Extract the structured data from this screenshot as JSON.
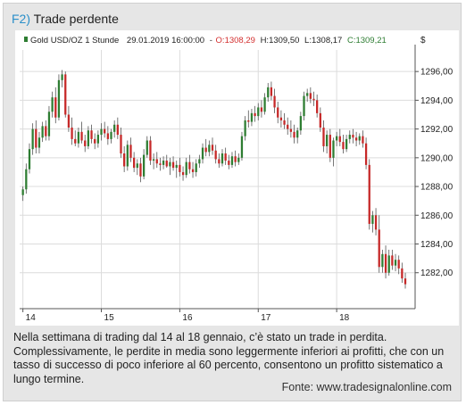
{
  "figure": {
    "number": "F2)",
    "title": "Trade perdente",
    "caption": "Nella settimana di trading dal 14 al 18 gennaio, c’è stato un trade in perdita. Complessivamente, le perdite in media sono leggermente inferiori ai profitti, che con un tasso di successo di poco inferiore al 60 percento, consentono un profitto sistematico a lungo termine.",
    "source": "Fonte: www.tradesignalonline.com"
  },
  "colors": {
    "up": "#2e7d32",
    "down": "#c62828",
    "wick": "#555555",
    "panel_bg": "#e6e6e6",
    "accent": "#2a8fc9"
  },
  "chart_data": {
    "type": "candlestick",
    "header": {
      "instrument": "Gold USD/OZ 1 Stunde",
      "datetime": "29.01.2019 16:00:00",
      "open": "O:1308,29",
      "high": "H:1309,50",
      "low": "L:1308,17",
      "close": "C:1309,21"
    },
    "y_axis_title": "$",
    "y_ticks": [
      "1282,00",
      "1284,00",
      "1286,00",
      "1288,00",
      "1290,00",
      "1292,00",
      "1294,00",
      "1296,00"
    ],
    "y_tick_values": [
      1282,
      1284,
      1286,
      1288,
      1290,
      1292,
      1294,
      1296
    ],
    "ylim": [
      1279.5,
      1297.5
    ],
    "x_ticks": [
      "14",
      "15",
      "16",
      "17",
      "18"
    ],
    "x_tick_positions": [
      0,
      24,
      48,
      72,
      96
    ],
    "xlim": [
      -1,
      120
    ],
    "grid": true,
    "candles": [
      {
        "o": 1287.4,
        "h": 1288.0,
        "l": 1287.0,
        "c": 1287.8
      },
      {
        "o": 1287.8,
        "h": 1289.6,
        "l": 1287.5,
        "c": 1289.2
      },
      {
        "o": 1289.2,
        "h": 1291.0,
        "l": 1288.9,
        "c": 1290.6
      },
      {
        "o": 1290.6,
        "h": 1292.4,
        "l": 1290.2,
        "c": 1292.0
      },
      {
        "o": 1292.0,
        "h": 1292.6,
        "l": 1290.3,
        "c": 1290.7
      },
      {
        "o": 1290.7,
        "h": 1291.8,
        "l": 1290.3,
        "c": 1291.4
      },
      {
        "o": 1291.4,
        "h": 1292.5,
        "l": 1291.1,
        "c": 1292.2
      },
      {
        "o": 1292.2,
        "h": 1292.6,
        "l": 1291.2,
        "c": 1291.5
      },
      {
        "o": 1291.5,
        "h": 1293.6,
        "l": 1291.2,
        "c": 1293.2
      },
      {
        "o": 1293.2,
        "h": 1294.6,
        "l": 1292.8,
        "c": 1294.2
      },
      {
        "o": 1294.2,
        "h": 1294.9,
        "l": 1292.4,
        "c": 1292.8
      },
      {
        "o": 1292.8,
        "h": 1295.8,
        "l": 1292.6,
        "c": 1295.4
      },
      {
        "o": 1295.4,
        "h": 1296.1,
        "l": 1294.9,
        "c": 1295.8
      },
      {
        "o": 1295.8,
        "h": 1296.0,
        "l": 1292.8,
        "c": 1293.0
      },
      {
        "o": 1293.0,
        "h": 1293.6,
        "l": 1291.8,
        "c": 1292.1
      },
      {
        "o": 1292.1,
        "h": 1292.8,
        "l": 1290.9,
        "c": 1291.3
      },
      {
        "o": 1291.3,
        "h": 1291.9,
        "l": 1290.8,
        "c": 1291.0
      },
      {
        "o": 1291.0,
        "h": 1292.1,
        "l": 1290.7,
        "c": 1291.8
      },
      {
        "o": 1291.8,
        "h": 1292.5,
        "l": 1291.0,
        "c": 1291.2
      },
      {
        "o": 1291.2,
        "h": 1291.6,
        "l": 1290.4,
        "c": 1290.8
      },
      {
        "o": 1290.8,
        "h": 1292.2,
        "l": 1290.6,
        "c": 1291.9
      },
      {
        "o": 1291.9,
        "h": 1292.3,
        "l": 1291.0,
        "c": 1291.3
      },
      {
        "o": 1291.3,
        "h": 1291.7,
        "l": 1290.6,
        "c": 1291.0
      },
      {
        "o": 1291.0,
        "h": 1291.9,
        "l": 1290.7,
        "c": 1291.6
      },
      {
        "o": 1291.6,
        "h": 1292.4,
        "l": 1291.2,
        "c": 1292.0
      },
      {
        "o": 1292.0,
        "h": 1292.5,
        "l": 1291.4,
        "c": 1291.7
      },
      {
        "o": 1291.7,
        "h": 1292.2,
        "l": 1290.9,
        "c": 1291.3
      },
      {
        "o": 1291.3,
        "h": 1292.0,
        "l": 1291.0,
        "c": 1291.8
      },
      {
        "o": 1291.8,
        "h": 1292.6,
        "l": 1291.4,
        "c": 1292.3
      },
      {
        "o": 1292.3,
        "h": 1292.8,
        "l": 1291.3,
        "c": 1291.6
      },
      {
        "o": 1291.6,
        "h": 1292.1,
        "l": 1290.0,
        "c": 1290.3
      },
      {
        "o": 1290.3,
        "h": 1290.8,
        "l": 1289.0,
        "c": 1289.4
      },
      {
        "o": 1289.4,
        "h": 1291.2,
        "l": 1289.1,
        "c": 1290.9
      },
      {
        "o": 1290.9,
        "h": 1291.4,
        "l": 1289.7,
        "c": 1290.0
      },
      {
        "o": 1290.0,
        "h": 1290.4,
        "l": 1289.0,
        "c": 1289.3
      },
      {
        "o": 1289.3,
        "h": 1289.9,
        "l": 1288.8,
        "c": 1289.6
      },
      {
        "o": 1289.6,
        "h": 1290.0,
        "l": 1288.3,
        "c": 1288.7
      },
      {
        "o": 1288.7,
        "h": 1290.6,
        "l": 1288.5,
        "c": 1290.2
      },
      {
        "o": 1290.2,
        "h": 1291.5,
        "l": 1290.0,
        "c": 1291.2
      },
      {
        "o": 1291.2,
        "h": 1291.5,
        "l": 1289.5,
        "c": 1289.8
      },
      {
        "o": 1289.8,
        "h": 1290.3,
        "l": 1289.2,
        "c": 1289.9
      },
      {
        "o": 1289.9,
        "h": 1290.4,
        "l": 1289.3,
        "c": 1289.6
      },
      {
        "o": 1289.6,
        "h": 1290.0,
        "l": 1289.1,
        "c": 1289.5
      },
      {
        "o": 1289.5,
        "h": 1290.1,
        "l": 1289.2,
        "c": 1289.8
      },
      {
        "o": 1289.8,
        "h": 1290.2,
        "l": 1289.3,
        "c": 1289.4
      },
      {
        "o": 1289.4,
        "h": 1290.0,
        "l": 1288.8,
        "c": 1289.7
      },
      {
        "o": 1289.7,
        "h": 1290.1,
        "l": 1289.1,
        "c": 1289.3
      },
      {
        "o": 1289.3,
        "h": 1289.8,
        "l": 1288.6,
        "c": 1289.5
      },
      {
        "o": 1289.5,
        "h": 1290.0,
        "l": 1288.7,
        "c": 1289.0
      },
      {
        "o": 1289.0,
        "h": 1289.4,
        "l": 1288.4,
        "c": 1288.8
      },
      {
        "o": 1288.8,
        "h": 1290.0,
        "l": 1288.6,
        "c": 1289.7
      },
      {
        "o": 1289.7,
        "h": 1290.2,
        "l": 1288.9,
        "c": 1289.2
      },
      {
        "o": 1289.2,
        "h": 1289.7,
        "l": 1288.6,
        "c": 1289.0
      },
      {
        "o": 1289.0,
        "h": 1289.9,
        "l": 1288.7,
        "c": 1289.6
      },
      {
        "o": 1289.6,
        "h": 1290.2,
        "l": 1289.3,
        "c": 1289.9
      },
      {
        "o": 1289.9,
        "h": 1291.0,
        "l": 1289.6,
        "c": 1290.7
      },
      {
        "o": 1290.7,
        "h": 1291.3,
        "l": 1290.1,
        "c": 1290.4
      },
      {
        "o": 1290.4,
        "h": 1291.2,
        "l": 1290.1,
        "c": 1290.9
      },
      {
        "o": 1290.9,
        "h": 1291.4,
        "l": 1290.2,
        "c": 1290.5
      },
      {
        "o": 1290.5,
        "h": 1290.9,
        "l": 1289.6,
        "c": 1289.9
      },
      {
        "o": 1289.9,
        "h": 1290.3,
        "l": 1289.3,
        "c": 1289.6
      },
      {
        "o": 1289.6,
        "h": 1290.6,
        "l": 1289.4,
        "c": 1290.3
      },
      {
        "o": 1290.3,
        "h": 1290.7,
        "l": 1289.5,
        "c": 1289.8
      },
      {
        "o": 1289.8,
        "h": 1290.2,
        "l": 1289.2,
        "c": 1289.5
      },
      {
        "o": 1289.5,
        "h": 1290.4,
        "l": 1289.3,
        "c": 1290.1
      },
      {
        "o": 1290.1,
        "h": 1290.5,
        "l": 1289.4,
        "c": 1289.7
      },
      {
        "o": 1289.7,
        "h": 1290.3,
        "l": 1289.5,
        "c": 1290.0
      },
      {
        "o": 1290.0,
        "h": 1291.8,
        "l": 1289.8,
        "c": 1291.5
      },
      {
        "o": 1291.5,
        "h": 1292.9,
        "l": 1291.2,
        "c": 1292.6
      },
      {
        "o": 1292.6,
        "h": 1293.3,
        "l": 1292.1,
        "c": 1292.5
      },
      {
        "o": 1292.5,
        "h": 1293.4,
        "l": 1292.2,
        "c": 1293.1
      },
      {
        "o": 1293.1,
        "h": 1293.6,
        "l": 1292.5,
        "c": 1292.9
      },
      {
        "o": 1292.9,
        "h": 1293.8,
        "l": 1292.6,
        "c": 1293.5
      },
      {
        "o": 1293.5,
        "h": 1294.0,
        "l": 1292.8,
        "c": 1293.2
      },
      {
        "o": 1293.2,
        "h": 1294.5,
        "l": 1293.0,
        "c": 1294.2
      },
      {
        "o": 1294.2,
        "h": 1295.2,
        "l": 1293.9,
        "c": 1294.9
      },
      {
        "o": 1294.9,
        "h": 1295.3,
        "l": 1294.0,
        "c": 1294.3
      },
      {
        "o": 1294.3,
        "h": 1294.8,
        "l": 1293.1,
        "c": 1293.5
      },
      {
        "o": 1293.5,
        "h": 1293.9,
        "l": 1292.4,
        "c": 1292.8
      },
      {
        "o": 1292.8,
        "h": 1293.3,
        "l": 1292.1,
        "c": 1292.6
      },
      {
        "o": 1292.6,
        "h": 1293.1,
        "l": 1292.0,
        "c": 1292.3
      },
      {
        "o": 1292.3,
        "h": 1292.8,
        "l": 1291.6,
        "c": 1292.0
      },
      {
        "o": 1292.0,
        "h": 1292.6,
        "l": 1291.4,
        "c": 1291.8
      },
      {
        "o": 1291.8,
        "h": 1292.3,
        "l": 1291.0,
        "c": 1291.4
      },
      {
        "o": 1291.4,
        "h": 1292.1,
        "l": 1291.0,
        "c": 1291.9
      },
      {
        "o": 1291.9,
        "h": 1293.2,
        "l": 1291.6,
        "c": 1292.9
      },
      {
        "o": 1292.9,
        "h": 1294.6,
        "l": 1292.6,
        "c": 1294.3
      },
      {
        "o": 1294.3,
        "h": 1294.8,
        "l": 1293.9,
        "c": 1294.5
      },
      {
        "o": 1294.5,
        "h": 1294.9,
        "l": 1293.8,
        "c": 1294.1
      },
      {
        "o": 1294.1,
        "h": 1294.6,
        "l": 1293.6,
        "c": 1294.0
      },
      {
        "o": 1294.0,
        "h": 1294.4,
        "l": 1292.8,
        "c": 1293.1
      },
      {
        "o": 1293.1,
        "h": 1293.5,
        "l": 1291.8,
        "c": 1292.1
      },
      {
        "o": 1292.1,
        "h": 1292.6,
        "l": 1290.4,
        "c": 1290.8
      },
      {
        "o": 1290.8,
        "h": 1291.9,
        "l": 1290.3,
        "c": 1291.6
      },
      {
        "o": 1291.6,
        "h": 1292.0,
        "l": 1289.7,
        "c": 1290.0
      },
      {
        "o": 1290.0,
        "h": 1291.4,
        "l": 1289.4,
        "c": 1291.2
      },
      {
        "o": 1291.2,
        "h": 1291.8,
        "l": 1290.8,
        "c": 1291.5
      },
      {
        "o": 1291.5,
        "h": 1292.0,
        "l": 1290.8,
        "c": 1291.1
      },
      {
        "o": 1291.1,
        "h": 1291.6,
        "l": 1290.3,
        "c": 1290.6
      },
      {
        "o": 1290.6,
        "h": 1291.6,
        "l": 1290.4,
        "c": 1291.3
      },
      {
        "o": 1291.3,
        "h": 1291.9,
        "l": 1291.0,
        "c": 1291.6
      },
      {
        "o": 1291.6,
        "h": 1292.0,
        "l": 1291.0,
        "c": 1291.4
      },
      {
        "o": 1291.4,
        "h": 1291.8,
        "l": 1290.8,
        "c": 1291.2
      },
      {
        "o": 1291.2,
        "h": 1291.7,
        "l": 1290.9,
        "c": 1291.5
      },
      {
        "o": 1291.5,
        "h": 1291.9,
        "l": 1290.7,
        "c": 1291.0
      },
      {
        "o": 1291.0,
        "h": 1291.4,
        "l": 1289.2,
        "c": 1289.5
      },
      {
        "o": 1289.5,
        "h": 1289.9,
        "l": 1285.0,
        "c": 1285.4
      },
      {
        "o": 1285.4,
        "h": 1286.3,
        "l": 1284.8,
        "c": 1286.0
      },
      {
        "o": 1286.0,
        "h": 1286.5,
        "l": 1284.6,
        "c": 1285.0
      },
      {
        "o": 1285.0,
        "h": 1286.0,
        "l": 1282.0,
        "c": 1282.4
      },
      {
        "o": 1282.4,
        "h": 1283.6,
        "l": 1282.0,
        "c": 1283.3
      },
      {
        "o": 1283.3,
        "h": 1283.9,
        "l": 1281.6,
        "c": 1282.0
      },
      {
        "o": 1282.0,
        "h": 1283.6,
        "l": 1281.8,
        "c": 1283.2
      },
      {
        "o": 1283.2,
        "h": 1283.6,
        "l": 1282.2,
        "c": 1282.5
      },
      {
        "o": 1282.5,
        "h": 1283.3,
        "l": 1282.1,
        "c": 1282.9
      },
      {
        "o": 1282.9,
        "h": 1283.2,
        "l": 1281.9,
        "c": 1282.3
      },
      {
        "o": 1282.3,
        "h": 1282.7,
        "l": 1281.3,
        "c": 1281.6
      },
      {
        "o": 1281.6,
        "h": 1282.0,
        "l": 1280.9,
        "c": 1281.2
      }
    ]
  }
}
